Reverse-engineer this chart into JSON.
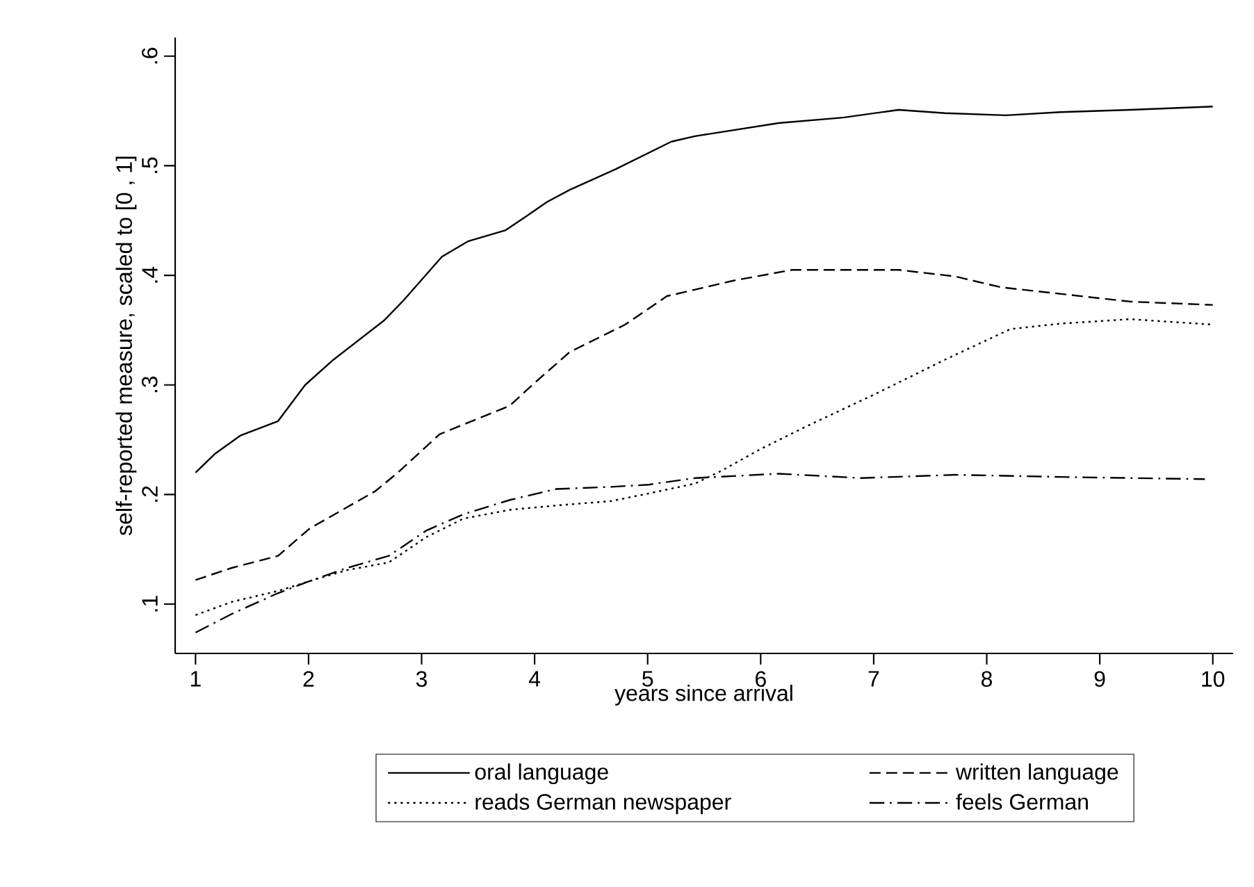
{
  "chart_data": {
    "type": "line",
    "xlabel": "years since arrival",
    "ylabel": "self-reported measure, scaled to [0 , 1]",
    "xlim": [
      0.82,
      10.18
    ],
    "ylim": [
      0.055,
      0.617
    ],
    "xticks": [
      1,
      2,
      3,
      4,
      5,
      6,
      7,
      8,
      9,
      10
    ],
    "yticks": [
      {
        "value": 0.1,
        "label": ".1"
      },
      {
        "value": 0.2,
        "label": ".2"
      },
      {
        "value": 0.3,
        "label": ".3"
      },
      {
        "value": 0.4,
        "label": ".4"
      },
      {
        "value": 0.5,
        "label": ".5"
      },
      {
        "value": 0.6,
        "label": ".6"
      }
    ],
    "grid": false,
    "legend": "bottom",
    "marker": "none",
    "series": [
      {
        "name": "oral language",
        "color": "#000000",
        "line_style": "solid",
        "x": [
          1,
          1.17,
          1.4,
          1.73,
          1.97,
          2.22,
          2.67,
          2.83,
          3.18,
          3.41,
          3.74,
          3.9,
          4.11,
          4.31,
          4.72,
          5.21,
          5.42,
          6.16,
          6.73,
          7.22,
          7.63,
          8.17,
          8.66,
          9.27,
          10
        ],
        "values": [
          0.22,
          0.237,
          0.254,
          0.267,
          0.3,
          0.323,
          0.359,
          0.376,
          0.417,
          0.431,
          0.441,
          0.452,
          0.467,
          0.478,
          0.497,
          0.522,
          0.527,
          0.539,
          0.544,
          0.551,
          0.548,
          0.546,
          0.549,
          0.551,
          0.554
        ]
      },
      {
        "name": "written language",
        "color": "#000000",
        "line_style": "dashed",
        "x": [
          1,
          1.32,
          1.73,
          2.01,
          2.59,
          2.79,
          3.16,
          3.78,
          3.98,
          4.31,
          4.8,
          5.17,
          5.42,
          5.75,
          6.28,
          7.22,
          7.72,
          8.13,
          8.66,
          9.27,
          10
        ],
        "values": [
          0.122,
          0.133,
          0.144,
          0.169,
          0.203,
          0.22,
          0.255,
          0.281,
          0.3,
          0.33,
          0.355,
          0.381,
          0.387,
          0.395,
          0.405,
          0.405,
          0.399,
          0.389,
          0.383,
          0.376,
          0.373
        ]
      },
      {
        "name": "reads German newspaper",
        "color": "#000000",
        "line_style": "dotted",
        "x": [
          1,
          1.32,
          1.73,
          2.01,
          2.34,
          2.71,
          3.04,
          3.37,
          3.78,
          4.19,
          4.68,
          5.01,
          5.42,
          5.66,
          5.99,
          6.4,
          7.02,
          7.63,
          8.21,
          8.66,
          9.27,
          10
        ],
        "values": [
          0.09,
          0.102,
          0.112,
          0.121,
          0.131,
          0.138,
          0.161,
          0.178,
          0.186,
          0.19,
          0.194,
          0.201,
          0.21,
          0.222,
          0.241,
          0.262,
          0.292,
          0.323,
          0.351,
          0.356,
          0.36,
          0.355
        ]
      },
      {
        "name": "feels German",
        "color": "#000000",
        "line_style": "dashdot",
        "x": [
          1,
          1.32,
          1.73,
          2.01,
          2.34,
          2.71,
          3.04,
          3.37,
          3.78,
          4.19,
          4.68,
          5.01,
          5.42,
          6.16,
          6.89,
          7.72,
          8.66,
          9.93
        ],
        "values": [
          0.074,
          0.091,
          0.11,
          0.121,
          0.133,
          0.144,
          0.167,
          0.182,
          0.195,
          0.205,
          0.207,
          0.209,
          0.215,
          0.219,
          0.215,
          0.218,
          0.216,
          0.214
        ]
      }
    ]
  }
}
